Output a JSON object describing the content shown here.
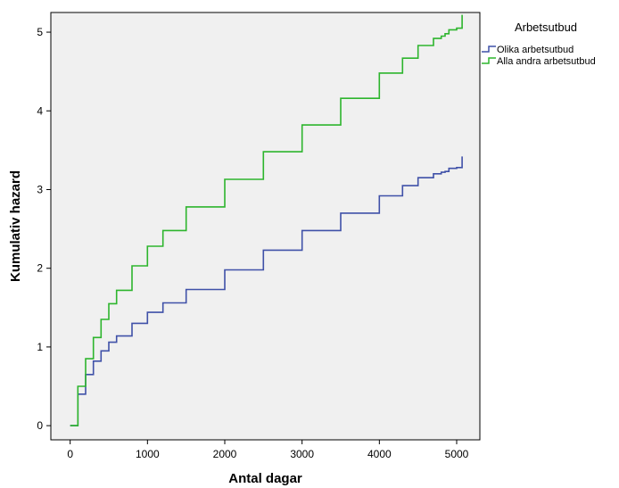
{
  "chart_data": {
    "type": "line",
    "title": "",
    "xlabel": "Antal dagar",
    "ylabel": "Kumulativ hazard",
    "xlim": [
      -250,
      5300
    ],
    "ylim": [
      -0.18,
      5.25
    ],
    "xticks": [
      0,
      1000,
      2000,
      3000,
      4000,
      5000
    ],
    "yticks": [
      0,
      1,
      2,
      3,
      4,
      5
    ],
    "grid": false,
    "plot_background": "#f0f0f0",
    "legend": {
      "title": "Arbetsutbud",
      "position": "top-right, outside plot"
    },
    "series": [
      {
        "name": "Olika arbetsutbud",
        "color": "#3f51a8",
        "step": true,
        "x": [
          0,
          100,
          200,
          300,
          400,
          500,
          600,
          800,
          1000,
          1200,
          1500,
          2000,
          2500,
          3000,
          3500,
          4000,
          4300,
          4500,
          4700,
          4800,
          4850,
          4900,
          5000,
          5070,
          5070
        ],
        "y": [
          0,
          0.4,
          0.65,
          0.82,
          0.95,
          1.06,
          1.14,
          1.3,
          1.44,
          1.56,
          1.73,
          1.98,
          2.23,
          2.48,
          2.7,
          2.92,
          3.05,
          3.15,
          3.2,
          3.22,
          3.23,
          3.27,
          3.28,
          3.28,
          3.42
        ]
      },
      {
        "name": "Alla andra arbetsutbud",
        "color": "#2db52d",
        "step": true,
        "x": [
          0,
          100,
          200,
          300,
          400,
          500,
          600,
          800,
          1000,
          1200,
          1500,
          2000,
          2500,
          3000,
          3500,
          4000,
          4300,
          4500,
          4700,
          4800,
          4850,
          4900,
          5000,
          5070,
          5070
        ],
        "y": [
          0,
          0.5,
          0.85,
          1.12,
          1.35,
          1.55,
          1.72,
          2.03,
          2.28,
          2.48,
          2.78,
          3.13,
          3.48,
          3.82,
          4.16,
          4.48,
          4.67,
          4.83,
          4.92,
          4.95,
          4.98,
          5.03,
          5.05,
          5.05,
          5.22
        ]
      }
    ]
  }
}
